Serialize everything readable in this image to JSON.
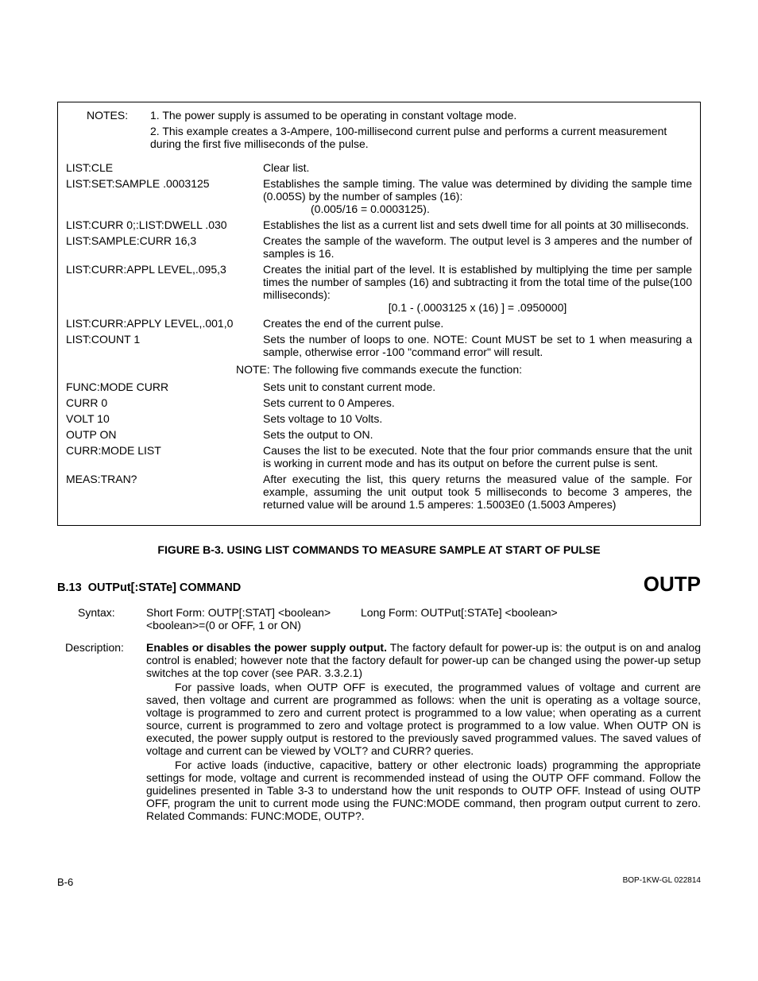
{
  "notes": {
    "label": "NOTES:",
    "line1": "1. The power supply is assumed to be operating in constant voltage mode.",
    "line2": "2. This example creates a 3-Ampere, 100-millisecond current pulse and performs a current measurement during the first five milliseconds of the pulse."
  },
  "commands": [
    {
      "cmd": "LIST:CLE",
      "desc": "Clear list."
    },
    {
      "cmd": "LIST:SET:SAMPLE .0003125",
      "desc": "Establishes the sample timing. The value was determined by dividing the sample time (0.005S) by the number of samples (16):",
      "extra": "(0.005/16 = 0.0003125)."
    },
    {
      "cmd": "LIST:CURR 0;:LIST:DWELL .030",
      "desc": "Establishes the list as a current list and sets dwell time for all points at 30 milliseconds."
    },
    {
      "cmd": "LIST:SAMPLE:CURR 16,3",
      "desc": "Creates the sample of the waveform. The output level is 3 amperes and the number of samples is 16."
    },
    {
      "cmd": "LIST:CURR:APPL LEVEL,.095,3",
      "desc": "Creates the initial part of the level. It is established by multiplying the time per sample times the number of samples (16) and subtracting it from the total time of the pulse(100 milliseconds):",
      "extra2": "[0.1 - (.0003125 x (16) ] = .0950000]"
    },
    {
      "cmd": "LIST:CURR:APPLY LEVEL,.001,0",
      "desc": "Creates the end of the current pulse."
    },
    {
      "cmd": "LIST:COUNT 1",
      "desc": "Sets the number of loops to one. NOTE: Count MUST be set to 1 when measuring a sample, otherwise error -100 \"command error\" will result."
    }
  ],
  "midnote": "NOTE: The following five commands execute the function:",
  "commands2": [
    {
      "cmd": "FUNC:MODE CURR",
      "desc": "Sets unit to constant current mode."
    },
    {
      "cmd": "CURR 0",
      "desc": "Sets current to 0 Amperes."
    },
    {
      "cmd": "VOLT 10",
      "desc": "Sets voltage to 10 Volts."
    },
    {
      "cmd": "OUTP ON",
      "desc": "Sets the output to ON."
    },
    {
      "cmd": "CURR:MODE LIST",
      "desc": "Causes the list to be executed. Note that the four prior commands ensure that the unit is working in current mode and has its output on before the current pulse is sent."
    },
    {
      "cmd": "MEAS:TRAN?",
      "desc": "After executing the list, this query returns the measured value of the sample. For example, assuming the unit output took 5 milliseconds to become 3 amperes, the returned value will be around 1.5 amperes: 1.5003E0 (1.5003 Amperes)"
    }
  ],
  "figure_caption": "FIGURE B-3.   USING LIST COMMANDS TO MEASURE SAMPLE AT START OF PULSE",
  "section": {
    "number": "B.13",
    "title": "OUTPut[:STATe] COMMAND",
    "keyword": "OUTP"
  },
  "syntax": {
    "label": "Syntax:",
    "short": "Short Form: OUTP[:STAT] <boolean>",
    "long": "Long Form: OUTPut[:STATe] <boolean>",
    "values": "<boolean>=(0 or OFF, 1 or ON)"
  },
  "description": {
    "label": "Description:",
    "bold": "Enables or disables the power supply output.",
    "p1rest": " The factory default for power-up is: the output is on and analog control is enabled; however note that the factory default for power-up can be changed using the power-up setup switches at the top cover (see PAR. 3.3.2.1)",
    "p2": "For passive loads, when OUTP OFF is executed, the programmed values of voltage and current are saved, then voltage and current are programmed as follows: when the unit is operating as a voltage source, voltage is programmed to zero and current protect is programmed to a low value; when operating as a current source, current is programmed to zero and voltage protect is programmed to a low value. When OUTP ON is executed, the power supply output is restored to the previously saved programmed values. The saved values of voltage and current can be viewed by VOLT? and CURR? queries.",
    "p3": "For active loads (inductive, capacitive, battery or other electronic loads) programming the appropriate settings for mode, voltage and current is recommended instead of using the OUTP OFF command. Follow the guidelines presented in Table 3-3 to understand how the unit responds to OUTP OFF. Instead of using OUTP OFF, program the unit to current mode using the FUNC:MODE command, then program output current to zero. Related Commands: FUNC:MODE, OUTP?."
  },
  "footer": {
    "left": "B-6",
    "right": "BOP-1KW-GL 022814"
  }
}
